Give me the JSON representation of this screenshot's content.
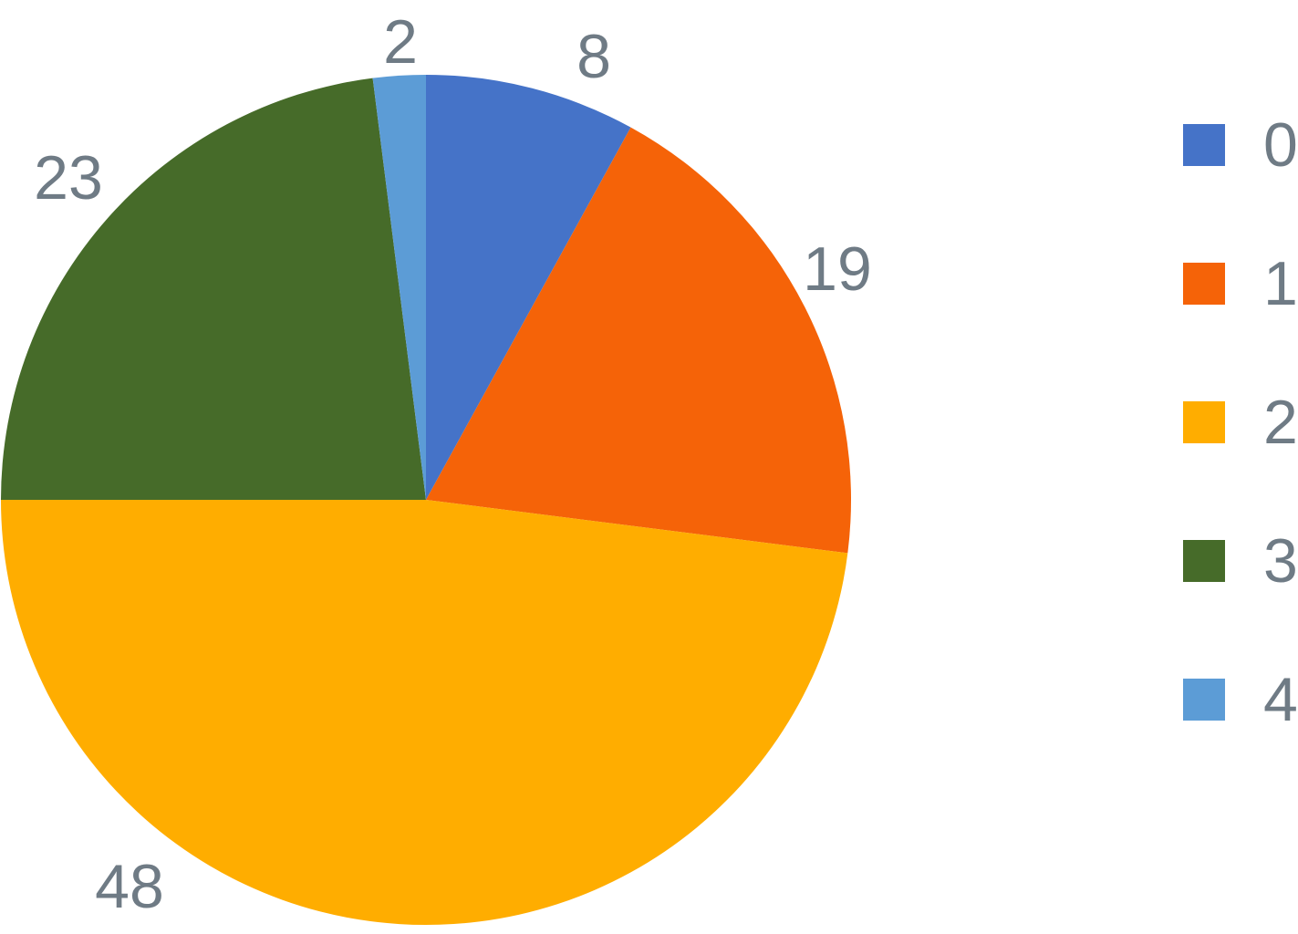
{
  "chart_data": {
    "type": "pie",
    "title": "",
    "categories": [
      "0",
      "1",
      "2",
      "3",
      "4"
    ],
    "values": [
      8,
      19,
      48,
      23,
      2
    ],
    "slices": [
      {
        "label": "0",
        "value": 8,
        "color": "#4573C8"
      },
      {
        "label": "1",
        "value": 19,
        "color": "#F56308"
      },
      {
        "label": "2",
        "value": 48,
        "color": "#FFAD00"
      },
      {
        "label": "3",
        "value": 23,
        "color": "#466B29"
      },
      {
        "label": "4",
        "value": 2,
        "color": "#5C9CD6"
      }
    ],
    "start_angle_deg": 0,
    "direction": "clockwise",
    "legend_position": "right",
    "value_label_color": "#6F7B85",
    "background": "#FFFFFF"
  }
}
